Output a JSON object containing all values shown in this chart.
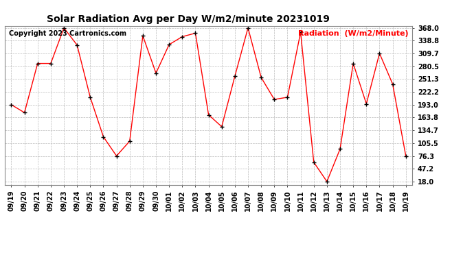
{
  "title": "Solar Radiation Avg per Day W/m2/minute 20231019",
  "copyright": "Copyright 2023 Cartronics.com",
  "legend_label": "Radiation  (W/m2/Minute)",
  "dates": [
    "09/19",
    "09/20",
    "09/21",
    "09/22",
    "09/23",
    "09/24",
    "09/25",
    "09/26",
    "09/27",
    "09/28",
    "09/29",
    "09/30",
    "10/01",
    "10/02",
    "10/03",
    "10/04",
    "10/05",
    "10/06",
    "10/07",
    "10/08",
    "10/09",
    "10/10",
    "10/11",
    "10/12",
    "10/13",
    "10/14",
    "10/15",
    "10/16",
    "10/17",
    "10/18",
    "10/19"
  ],
  "values": [
    193.0,
    175.0,
    287.0,
    287.0,
    368.0,
    329.0,
    210.0,
    120.0,
    76.3,
    110.0,
    350.0,
    265.0,
    330.0,
    348.0,
    356.0,
    170.0,
    143.0,
    258.0,
    368.0,
    255.0,
    205.0,
    210.0,
    358.0,
    62.0,
    18.0,
    92.0,
    287.0,
    195.0,
    310.0,
    240.0,
    76.3
  ],
  "yticks": [
    18.0,
    47.2,
    76.3,
    105.5,
    134.7,
    163.8,
    193.0,
    222.2,
    251.3,
    280.5,
    309.7,
    338.8,
    368.0
  ],
  "line_color": "red",
  "marker_color": "black",
  "grid_color": "#bbbbbb",
  "background_color": "white",
  "title_fontsize": 10,
  "copyright_fontsize": 7,
  "legend_fontsize": 8,
  "tick_fontsize": 7,
  "ymin": 18.0,
  "ymax": 368.0
}
